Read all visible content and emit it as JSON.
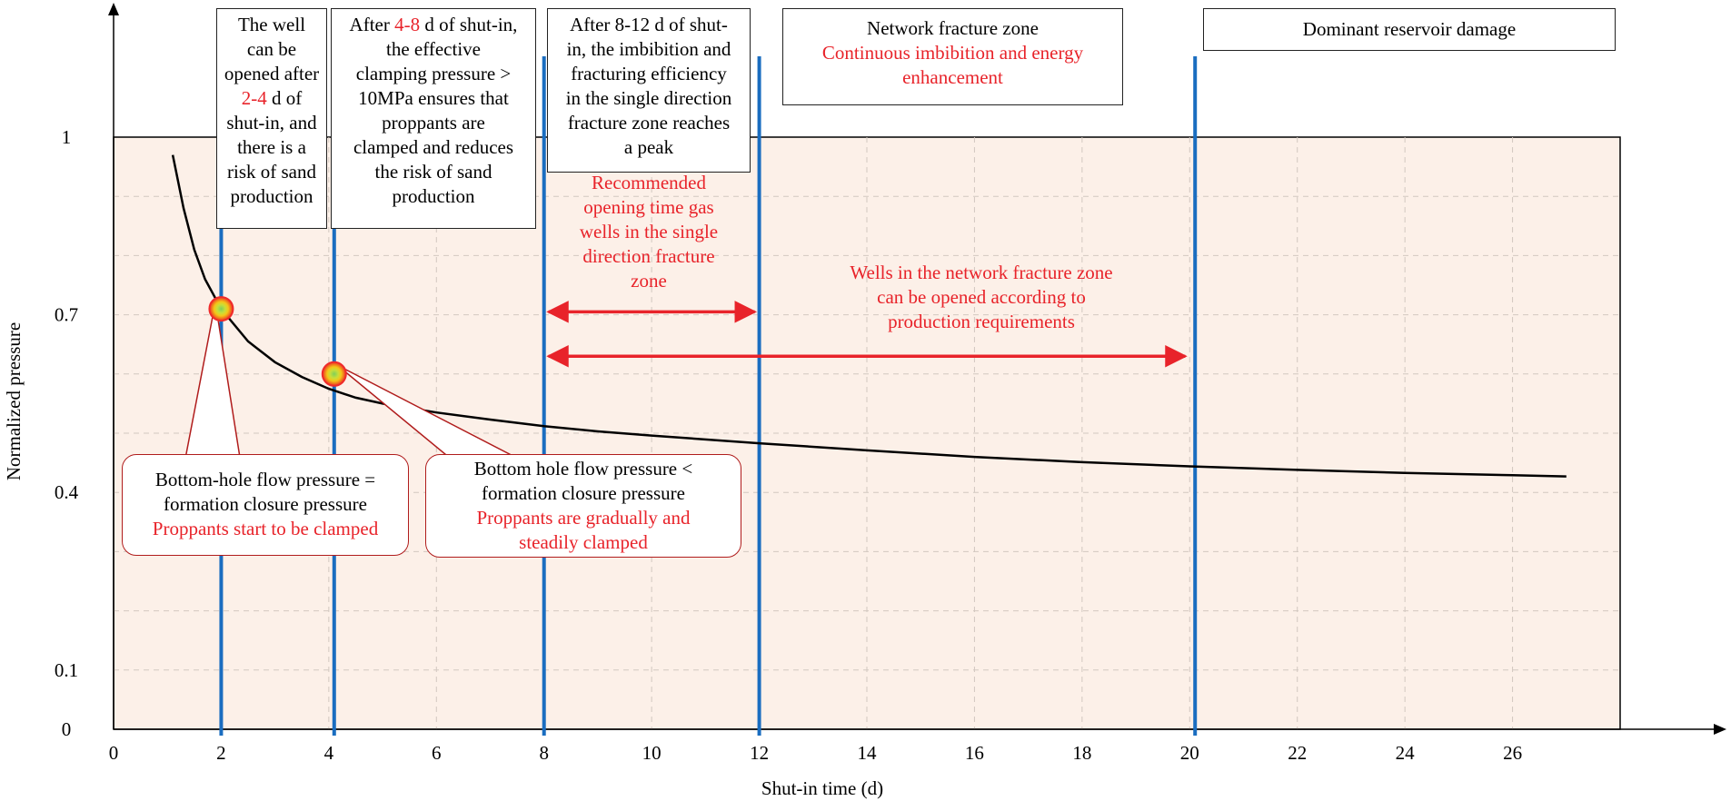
{
  "colors": {
    "plot_fill": "#fcf0e8",
    "curve": "#000000",
    "vlines": "#1a6dc0",
    "red": "#e8232a",
    "callout_border": "#b01c1c",
    "marker_outer": "#ef2b2b",
    "marker_mid": "#f5c518",
    "marker_inner": "#7fcf5a"
  },
  "chart_data": {
    "type": "line",
    "xlabel": "Shut-in time (d)",
    "ylabel": "Normalized pressure",
    "xlim": [
      0,
      28
    ],
    "ylim": [
      0,
      1
    ],
    "x_ticks": [
      "0",
      "2",
      "4",
      "6",
      "8",
      "10",
      "12",
      "14",
      "16",
      "18",
      "20",
      "22",
      "24",
      "26"
    ],
    "y_ticks": [
      {
        "label": "1",
        "value": 1
      },
      {
        "label": "0.7",
        "value": 0.7
      },
      {
        "label": "0.4",
        "value": 0.4
      },
      {
        "label": "0.1",
        "value": 0.1
      },
      {
        "label": "0",
        "value": 0
      }
    ],
    "grid": true,
    "series": [
      {
        "x": [
          1.1,
          1.3,
          1.5,
          1.7,
          2.0,
          2.5,
          3.0,
          3.5,
          4.0,
          4.5,
          5.0,
          6.0,
          7.0,
          8.0,
          9.0,
          10.0,
          12.0,
          14.0,
          16.0,
          18.0,
          20.0,
          22.0,
          24.0,
          26.0,
          27.0
        ],
        "y": [
          0.97,
          0.88,
          0.81,
          0.76,
          0.71,
          0.655,
          0.62,
          0.595,
          0.575,
          0.56,
          0.55,
          0.535,
          0.523,
          0.512,
          0.503,
          0.496,
          0.483,
          0.471,
          0.46,
          0.451,
          0.444,
          0.438,
          0.433,
          0.429,
          0.427
        ]
      }
    ],
    "vertical_lines_x": [
      2,
      4.1,
      8,
      12,
      20.1
    ],
    "markers": [
      {
        "x": 2.0,
        "y": 0.71
      },
      {
        "x": 4.1,
        "y": 0.6
      }
    ],
    "arrows": [
      {
        "x_start": 8,
        "x_end": 12,
        "y": 0.705
      },
      {
        "x_start": 8,
        "x_end": 20,
        "y": 0.63
      }
    ]
  },
  "annotations": {
    "box1": [
      "The well",
      "can be",
      "opened after",
      "2-4",
      " d of",
      "shut-in, and",
      "there is a",
      "risk of sand",
      "production"
    ],
    "box2": [
      "After ",
      "4-8",
      " d of shut-in,",
      "the effective",
      "clamping pressure >",
      "10MPa ensures that",
      "proppants are",
      "clamped and reduces",
      "the risk of sand",
      "production"
    ],
    "box3": [
      "After 8-12 d of shut-",
      "in, the imbibition and",
      "fracturing efficiency",
      "in the single direction",
      "fracture zone reaches",
      "a peak"
    ],
    "box4": [
      "Network fracture zone",
      "Continuous imbibition and energy",
      "enhancement"
    ],
    "box5": "Dominant reservoir damage",
    "red_note_single": [
      "Recommended",
      "opening time gas",
      "wells in the single",
      "direction fracture",
      "zone"
    ],
    "red_note_network": [
      "Wells in the network fracture zone",
      "can be opened according to",
      "production requirements"
    ],
    "callout1": [
      "Bottom-hole flow pressure =",
      "formation closure pressure",
      "Proppants start to be clamped"
    ],
    "callout2": [
      "Bottom hole flow pressure <",
      "formation closure pressure",
      "Proppants are gradually and",
      "steadily clamped"
    ]
  }
}
